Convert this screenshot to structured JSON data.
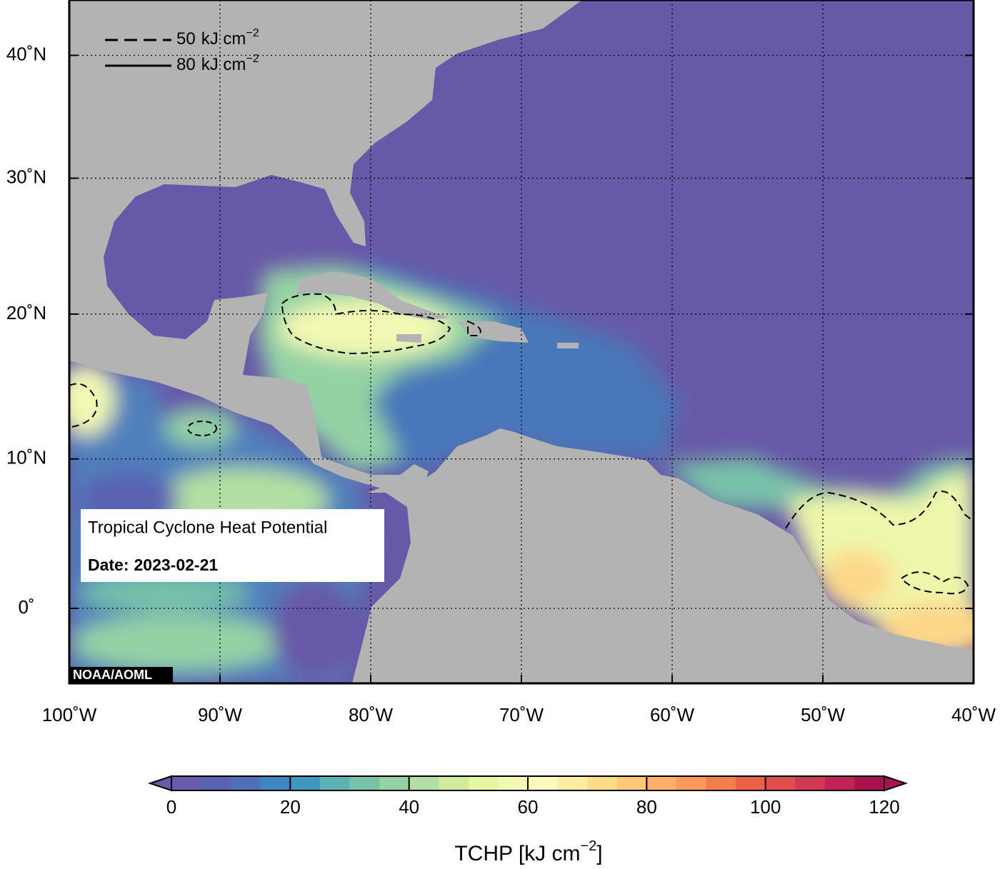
{
  "map": {
    "type": "map",
    "projection": "cylindrical-equal-area",
    "xlim": [
      -100,
      -40
    ],
    "ylim": [
      -5,
      45
    ],
    "xticks": [
      {
        "value": -100,
        "label": "100˚W"
      },
      {
        "value": -90,
        "label": "90˚W"
      },
      {
        "value": -80,
        "label": "80˚W"
      },
      {
        "value": -70,
        "label": "70˚W"
      },
      {
        "value": -60,
        "label": "60˚W"
      },
      {
        "value": -50,
        "label": "50˚W"
      },
      {
        "value": -40,
        "label": "40˚W"
      }
    ],
    "yticks": [
      {
        "value": 0,
        "label": "0˚"
      },
      {
        "value": 10,
        "label": "10˚N"
      },
      {
        "value": 20,
        "label": "20˚N"
      },
      {
        "value": 30,
        "label": "30˚N"
      },
      {
        "value": 40,
        "label": "40˚N"
      }
    ],
    "grid": true,
    "legend": [
      {
        "value": 50,
        "unit": "kJ cm",
        "exponent": "−2",
        "line": "dashed"
      },
      {
        "value": 80,
        "unit": "kJ cm",
        "exponent": "−2",
        "line": "solid"
      }
    ],
    "info": {
      "title": "Tropical Cyclone Heat Potential",
      "date_label": "Date:",
      "date": "2023-02-21"
    },
    "credit": "NOAA/AOML"
  },
  "colorbar": {
    "levels": [
      0,
      5,
      10,
      15,
      20,
      25,
      30,
      35,
      40,
      45,
      50,
      55,
      60,
      65,
      70,
      75,
      80,
      85,
      90,
      95,
      100,
      105,
      110,
      115,
      120
    ],
    "colors": [
      "#6a5aab",
      "#5a62b0",
      "#4f70b8",
      "#3f86c0",
      "#3f97c0",
      "#5cb2b3",
      "#78c2a9",
      "#94d2a4",
      "#b3e0a2",
      "#cfeba0",
      "#e6f5a0",
      "#f3f9b4",
      "#fdf8c0",
      "#fdeca2",
      "#fddc88",
      "#fdc877",
      "#fcb06a",
      "#f99a5c",
      "#f47d4d",
      "#ec6048",
      "#e04d4d",
      "#d03a50",
      "#bf2454",
      "#a8124f"
    ],
    "ticks": [
      0,
      20,
      40,
      60,
      80,
      100,
      120
    ],
    "extend": "both",
    "label": "TCHP [kJ cm",
    "label_exponent": "−2",
    "label_end": "]"
  }
}
